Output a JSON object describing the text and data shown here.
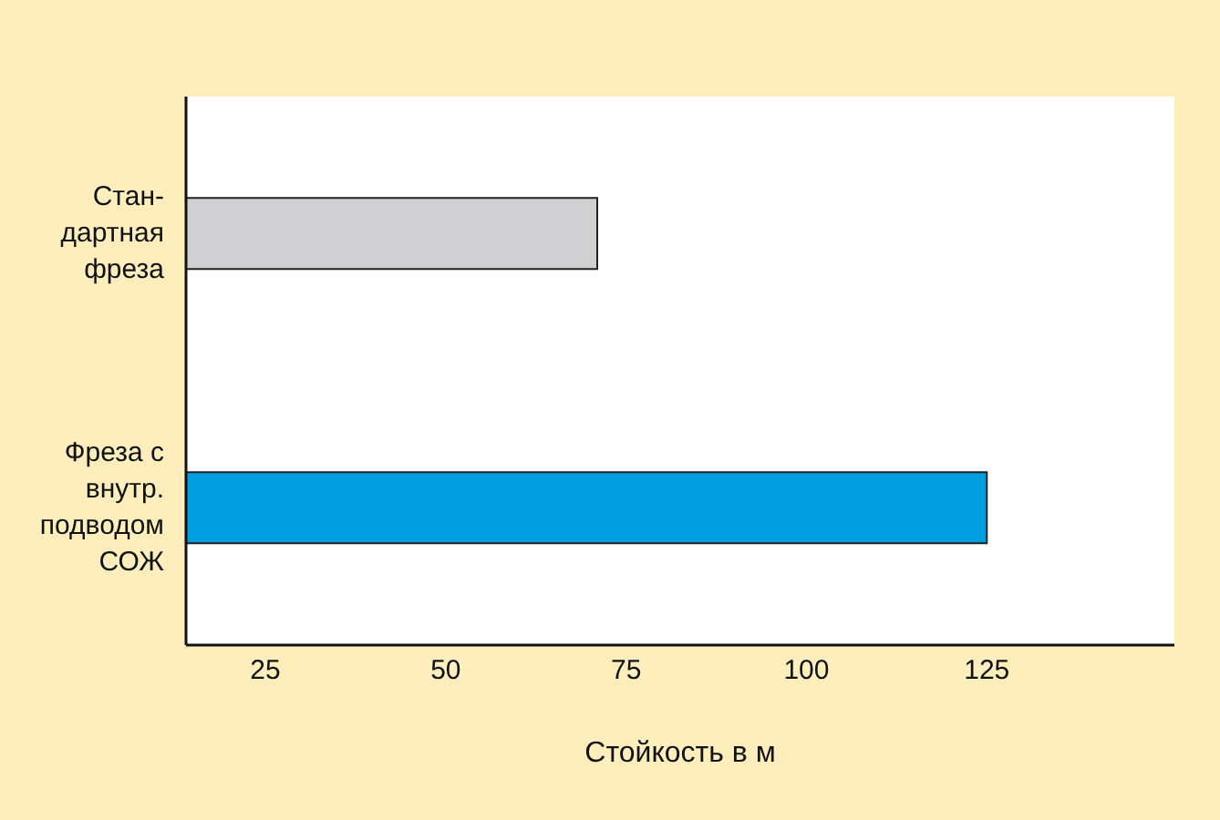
{
  "chart_data": {
    "type": "bar",
    "orientation": "horizontal",
    "xlabel": "Стойкость в м",
    "categories": [
      "Стан-\nдартная\nфреза",
      "Фреза с\nвнутр.\nподводом\nСОЖ"
    ],
    "values": [
      71,
      125
    ],
    "colors": [
      "#d0d0d2",
      "#009ddf"
    ],
    "xlim": [
      14,
      151
    ],
    "xticks": [
      25,
      50,
      75,
      100,
      125
    ],
    "grid": false
  }
}
